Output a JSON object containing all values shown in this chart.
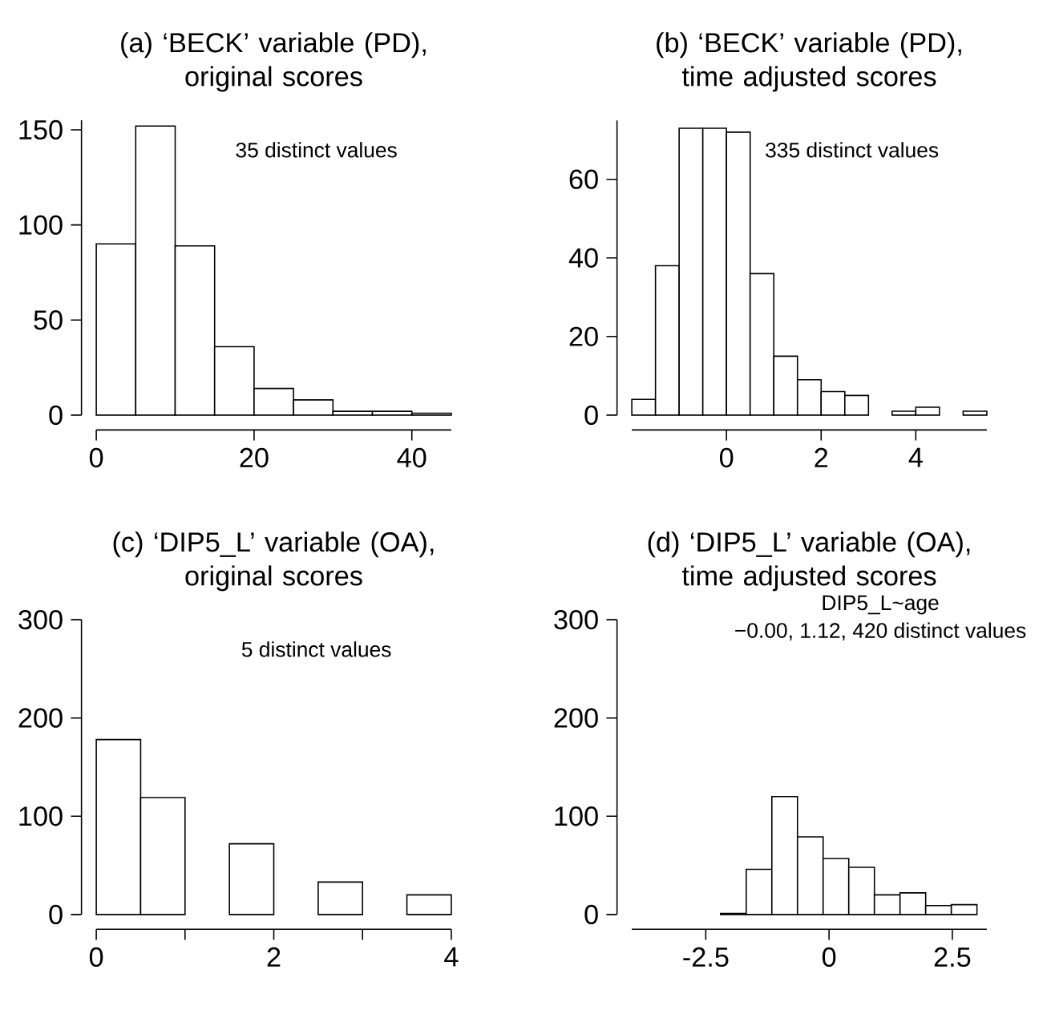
{
  "chart_data": [
    {
      "type": "histogram",
      "title": "(a) ‘BECK’ variable (PD),\noriginal scores",
      "bins": [
        0,
        5,
        10,
        15,
        20,
        25,
        30,
        35,
        40,
        45
      ],
      "values": [
        90,
        152,
        89,
        36,
        14,
        8,
        2,
        2,
        1
      ],
      "color": "#ffffff",
      "xlim": [
        0,
        45
      ],
      "ylim": [
        0,
        155
      ],
      "xticks": [
        0,
        20,
        40
      ],
      "yticks": [
        0,
        50,
        100,
        150
      ],
      "annotations": [
        "35 distinct values"
      ]
    },
    {
      "type": "histogram",
      "title": "(b) ‘BECK’ variable (PD),\ntime adjusted scores",
      "bins": [
        -2,
        -1.5,
        -1,
        -0.5,
        0,
        0.5,
        1,
        1.5,
        2,
        2.5,
        3,
        3.5,
        4,
        4.5,
        5,
        5.5
      ],
      "values": [
        4,
        38,
        73,
        73,
        72,
        36,
        15,
        9,
        6,
        5,
        null,
        1,
        2,
        null,
        1
      ],
      "color": "#ffffff",
      "xlim": [
        -2,
        5.5
      ],
      "ylim": [
        0,
        75
      ],
      "xticks": [
        0,
        2,
        4
      ],
      "yticks": [
        0,
        20,
        40,
        60
      ],
      "annotations": [
        "335 distinct values"
      ]
    },
    {
      "type": "histogram",
      "title": "(c) ‘DIP5_L’ variable (OA),\noriginal scores",
      "bins": [
        0,
        0.5,
        1,
        1.5,
        2,
        2.5,
        3,
        3.5,
        4
      ],
      "values": [
        178,
        119,
        null,
        72,
        null,
        33,
        null,
        20
      ],
      "color": "#ffffff",
      "xlim": [
        0,
        4
      ],
      "ylim": [
        0,
        300
      ],
      "xticks": [
        0,
        {
          "value": 1,
          "label": null
        },
        2,
        {
          "value": 3,
          "label": null
        },
        4
      ],
      "yticks": [
        0,
        100,
        200,
        300
      ],
      "annotations": [
        "5 distinct values"
      ]
    },
    {
      "type": "histogram",
      "title": "(d) ‘DIP5_L’ variable (OA),\ntime adjusted scores",
      "bins": [
        -2.2,
        -1.68,
        -1.16,
        -0.64,
        -0.12,
        0.4,
        0.92,
        1.44,
        1.96,
        2.48,
        3.0
      ],
      "values": [
        1,
        46,
        120,
        79,
        57,
        48,
        20,
        22,
        9,
        10
      ],
      "color": "#ffffff",
      "xlim": [
        -4,
        3.2
      ],
      "ylim": [
        0,
        300
      ],
      "xticks": [
        -2.5,
        0,
        2.5
      ],
      "yticks": [
        0,
        100,
        200,
        300
      ],
      "annotations": [
        "DIP5_L~age",
        "−0.00, 1.12, 420 distinct values"
      ]
    }
  ]
}
